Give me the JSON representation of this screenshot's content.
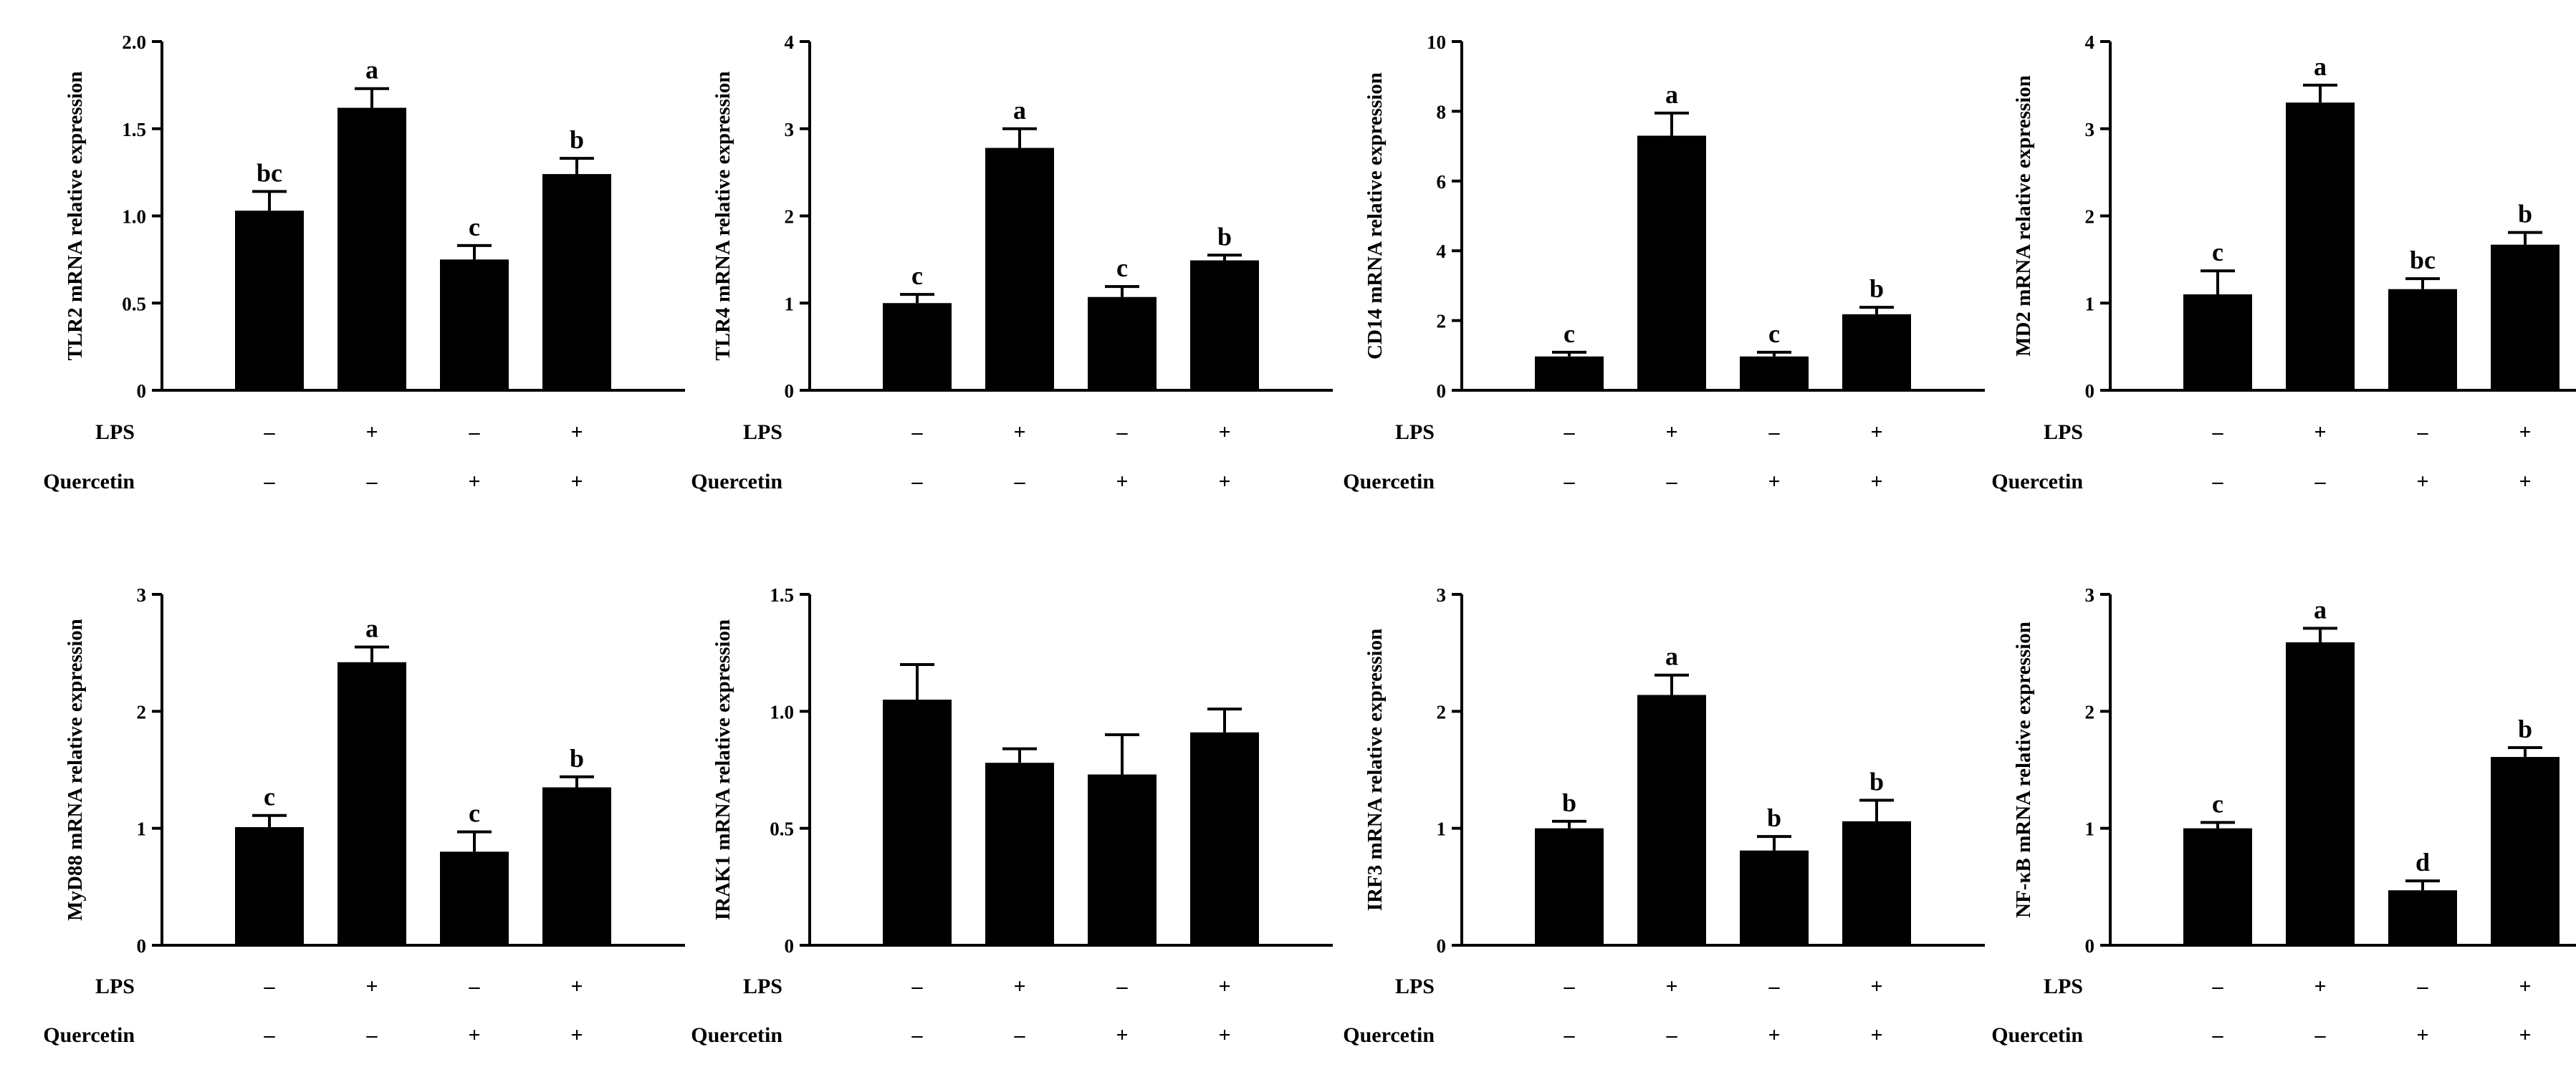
{
  "conditions": {
    "rows": [
      {
        "label": "LPS",
        "signs": [
          "–",
          "+",
          "–",
          "+"
        ]
      },
      {
        "label": "Quercetin",
        "signs": [
          "–",
          "–",
          "+",
          "+"
        ]
      }
    ]
  },
  "chart_data": [
    {
      "type": "bar",
      "ylabel": "TLR2 mRNA relative expression",
      "ylim": [
        0,
        2.0
      ],
      "yticks": [
        "0",
        "0.5",
        "1.0",
        "1.5",
        "2.0"
      ],
      "values": [
        1.03,
        1.62,
        0.75,
        1.24
      ],
      "errors": [
        0.11,
        0.11,
        0.08,
        0.09
      ],
      "letters": [
        "bc",
        "a",
        "c",
        "b"
      ]
    },
    {
      "type": "bar",
      "ylabel": "TLR4 mRNA relative expression",
      "ylim": [
        0,
        4
      ],
      "yticks": [
        "0",
        "1",
        "2",
        "3",
        "4"
      ],
      "values": [
        1.0,
        2.78,
        1.07,
        1.49
      ],
      "errors": [
        0.1,
        0.22,
        0.12,
        0.06
      ],
      "letters": [
        "c",
        "a",
        "c",
        "b"
      ]
    },
    {
      "type": "bar",
      "ylabel": "CD14 mRNA relative expression",
      "ylim": [
        0,
        10
      ],
      "yticks": [
        "0",
        "2",
        "4",
        "6",
        "8",
        "10"
      ],
      "values": [
        0.97,
        7.3,
        0.97,
        2.18
      ],
      "errors": [
        0.12,
        0.65,
        0.12,
        0.2
      ],
      "letters": [
        "c",
        "a",
        "c",
        "b"
      ]
    },
    {
      "type": "bar",
      "ylabel": "MD2 mRNA relative expression",
      "ylim": [
        0,
        4
      ],
      "yticks": [
        "0",
        "1",
        "2",
        "3",
        "4"
      ],
      "values": [
        1.1,
        3.3,
        1.16,
        1.67
      ],
      "errors": [
        0.27,
        0.2,
        0.12,
        0.14
      ],
      "letters": [
        "c",
        "a",
        "bc",
        "b"
      ]
    },
    {
      "type": "bar",
      "ylabel": "MyD88 mRNA relative expression",
      "ylim": [
        0,
        3
      ],
      "yticks": [
        "0",
        "1",
        "2",
        "3"
      ],
      "values": [
        1.01,
        2.42,
        0.8,
        1.35
      ],
      "errors": [
        0.1,
        0.13,
        0.17,
        0.09
      ],
      "letters": [
        "c",
        "a",
        "c",
        "b"
      ]
    },
    {
      "type": "bar",
      "ylabel": "IRAK1 mRNA relative expression",
      "ylim": [
        0,
        1.5
      ],
      "yticks": [
        "0",
        "0.5",
        "1.0",
        "1.5"
      ],
      "values": [
        1.05,
        0.78,
        0.73,
        0.91
      ],
      "errors": [
        0.15,
        0.06,
        0.17,
        0.1
      ],
      "letters": [
        "",
        "",
        "",
        ""
      ]
    },
    {
      "type": "bar",
      "ylabel": "IRF3 mRNA relative expression",
      "ylim": [
        0,
        3
      ],
      "yticks": [
        "0",
        "1",
        "2",
        "3"
      ],
      "values": [
        1.0,
        2.14,
        0.81,
        1.06
      ],
      "errors": [
        0.06,
        0.17,
        0.12,
        0.18
      ],
      "letters": [
        "b",
        "a",
        "b",
        "b"
      ]
    },
    {
      "type": "bar",
      "ylabel": "NF-κB mRNA relative expression",
      "ylim": [
        0,
        3
      ],
      "yticks": [
        "0",
        "1",
        "2",
        "3"
      ],
      "values": [
        1.0,
        2.59,
        0.47,
        1.61
      ],
      "errors": [
        0.05,
        0.12,
        0.08,
        0.08
      ],
      "letters": [
        "c",
        "a",
        "d",
        "b"
      ]
    }
  ]
}
